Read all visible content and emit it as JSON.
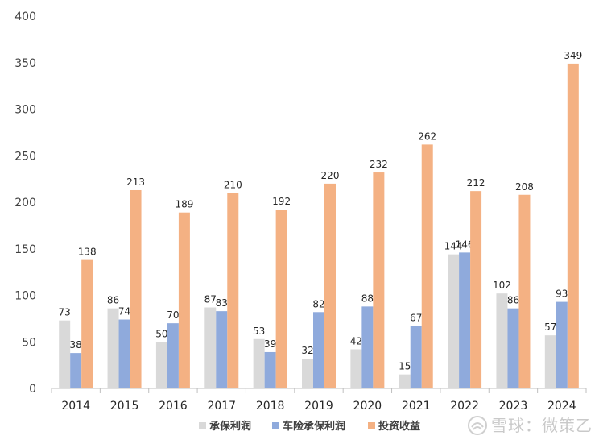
{
  "chart_data": {
    "type": "bar",
    "categories": [
      "2014",
      "2015",
      "2016",
      "2017",
      "2018",
      "2019",
      "2020",
      "2021",
      "2022",
      "2023",
      "2024"
    ],
    "series": [
      {
        "name": "承保利润",
        "color": "#d9d9d9",
        "values": [
          73,
          86,
          50,
          87,
          53,
          32,
          42,
          15,
          144,
          102,
          57
        ]
      },
      {
        "name": "车险承保利润",
        "color": "#8faadc",
        "values": [
          38,
          74,
          70,
          83,
          39,
          82,
          88,
          67,
          146,
          86,
          93
        ]
      },
      {
        "name": "投资收益",
        "color": "#f4b183",
        "values": [
          138,
          213,
          189,
          210,
          192,
          220,
          232,
          262,
          212,
          208,
          349
        ]
      }
    ],
    "ylim": [
      0,
      400
    ],
    "yticks": [
      0,
      50,
      100,
      150,
      200,
      250,
      300,
      350,
      400
    ],
    "legend_position": "bottom",
    "grid": false
  },
  "watermark": "雪球：微策乙"
}
